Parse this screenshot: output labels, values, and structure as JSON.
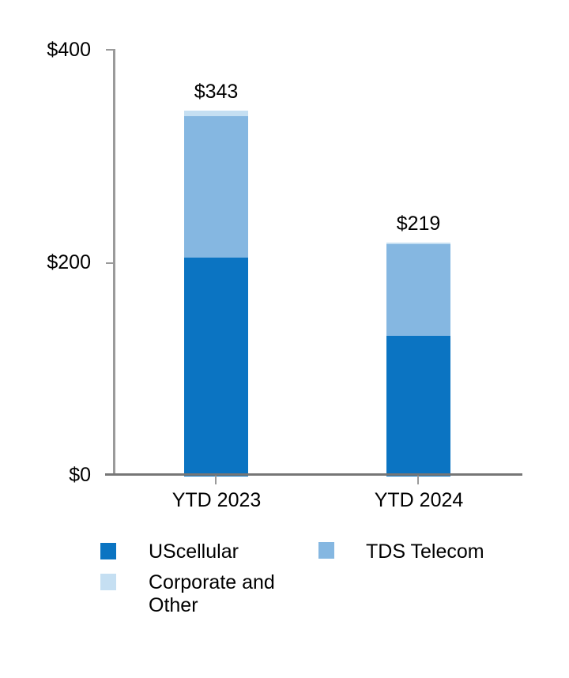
{
  "chart_data": {
    "type": "bar",
    "stacked": true,
    "categories": [
      "YTD 2023",
      "YTD 2024"
    ],
    "series": [
      {
        "name": "UScellular",
        "color": "#0b74c2",
        "values": [
          205,
          132
        ]
      },
      {
        "name": "TDS Telecom",
        "color": "#85b7e1",
        "values": [
          133,
          86
        ]
      },
      {
        "name": "Corporate and Other",
        "color": "#c5dff2",
        "values": [
          5,
          1
        ]
      }
    ],
    "bar_totals": [
      343,
      219
    ],
    "bar_total_labels": [
      "$343",
      "$219"
    ],
    "y_axis": {
      "min": 0,
      "max": 400,
      "ticks": [
        {
          "value": 400,
          "label": "$400"
        },
        {
          "value": 200,
          "label": "$200"
        },
        {
          "value": 0,
          "label": "$0"
        }
      ]
    },
    "grid": false,
    "legend_position": "bottom"
  },
  "legend": {
    "items": [
      {
        "label": "UScellular",
        "color": "#0b74c2"
      },
      {
        "label": "TDS Telecom",
        "color": "#85b7e1"
      },
      {
        "label": "Corporate and Other",
        "color": "#c5dff2"
      }
    ]
  },
  "colors": {
    "background": "#ffffff",
    "text": "#000000",
    "y_axis_line": "#9a9a9a",
    "x_axis_line": "#767676",
    "tick": "#9a9a9a"
  }
}
